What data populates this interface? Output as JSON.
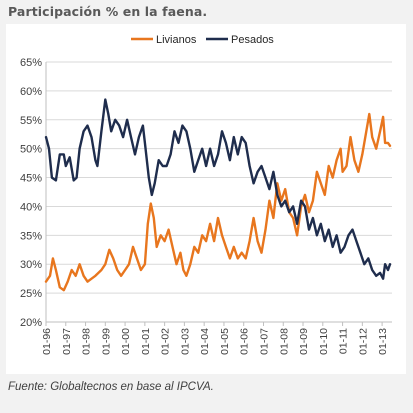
{
  "title": "Participación % en la faena.",
  "source": "Fuente: Globaltecnos en base al IPCVA.",
  "chart_data": {
    "type": "line",
    "title": "Participación % en la faena.",
    "xlabel": "",
    "ylabel": "",
    "ylim": [
      20,
      65
    ],
    "y_ticks": [
      "20%",
      "25%",
      "30%",
      "35%",
      "40%",
      "45%",
      "50%",
      "55%",
      "60%",
      "65%"
    ],
    "x_ticks": [
      "01-96",
      "01-97",
      "01-98",
      "01-99",
      "01-00",
      "01-01",
      "01-02",
      "01-03",
      "01-04",
      "01-05",
      "01-06",
      "01-07",
      "01-08",
      "01-09",
      "01-10",
      "01-11",
      "01-12",
      "01-13"
    ],
    "x_start": "1996-01",
    "x_end": "2013-06",
    "grid": "horizontal",
    "legend_position": "top",
    "series": [
      {
        "name": "Livianos",
        "color": "#e8761e",
        "points": [
          [
            1996.0,
            27
          ],
          [
            1996.2,
            28
          ],
          [
            1996.35,
            31
          ],
          [
            1996.5,
            29
          ],
          [
            1996.7,
            26
          ],
          [
            1996.9,
            25.5
          ],
          [
            1997.1,
            27
          ],
          [
            1997.3,
            29
          ],
          [
            1997.5,
            28
          ],
          [
            1997.7,
            30
          ],
          [
            1997.9,
            28
          ],
          [
            1998.1,
            27
          ],
          [
            1998.3,
            27.5
          ],
          [
            1998.5,
            28
          ],
          [
            1998.8,
            29
          ],
          [
            1999.0,
            30
          ],
          [
            1999.2,
            32.5
          ],
          [
            1999.4,
            31
          ],
          [
            1999.6,
            29
          ],
          [
            1999.8,
            28
          ],
          [
            2000.0,
            29
          ],
          [
            2000.2,
            30
          ],
          [
            2000.4,
            33
          ],
          [
            2000.6,
            31
          ],
          [
            2000.8,
            29
          ],
          [
            2001.0,
            30
          ],
          [
            2001.15,
            37
          ],
          [
            2001.3,
            40.5
          ],
          [
            2001.45,
            38
          ],
          [
            2001.6,
            33
          ],
          [
            2001.8,
            35
          ],
          [
            2002.0,
            34
          ],
          [
            2002.2,
            36
          ],
          [
            2002.4,
            33
          ],
          [
            2002.6,
            30
          ],
          [
            2002.8,
            32
          ],
          [
            2002.95,
            29
          ],
          [
            2003.1,
            28
          ],
          [
            2003.3,
            30
          ],
          [
            2003.5,
            33
          ],
          [
            2003.7,
            32
          ],
          [
            2003.9,
            35
          ],
          [
            2004.1,
            34
          ],
          [
            2004.3,
            37
          ],
          [
            2004.5,
            34
          ],
          [
            2004.7,
            38
          ],
          [
            2004.9,
            35
          ],
          [
            2005.1,
            33
          ],
          [
            2005.3,
            31
          ],
          [
            2005.5,
            33
          ],
          [
            2005.7,
            31
          ],
          [
            2005.9,
            32
          ],
          [
            2006.1,
            31
          ],
          [
            2006.3,
            34
          ],
          [
            2006.5,
            38
          ],
          [
            2006.7,
            34
          ],
          [
            2006.9,
            32
          ],
          [
            2007.1,
            36
          ],
          [
            2007.3,
            41
          ],
          [
            2007.5,
            38
          ],
          [
            2007.7,
            44
          ],
          [
            2007.9,
            41
          ],
          [
            2008.1,
            43
          ],
          [
            2008.3,
            39
          ],
          [
            2008.5,
            38
          ],
          [
            2008.7,
            35
          ],
          [
            2008.9,
            40
          ],
          [
            2009.1,
            42
          ],
          [
            2009.3,
            39
          ],
          [
            2009.5,
            41
          ],
          [
            2009.7,
            46
          ],
          [
            2009.9,
            44
          ],
          [
            2010.1,
            42
          ],
          [
            2010.3,
            47
          ],
          [
            2010.5,
            45
          ],
          [
            2010.7,
            48
          ],
          [
            2010.9,
            50
          ],
          [
            2011.0,
            46
          ],
          [
            2011.2,
            47
          ],
          [
            2011.4,
            52
          ],
          [
            2011.6,
            48
          ],
          [
            2011.8,
            46
          ],
          [
            2012.0,
            49
          ],
          [
            2012.2,
            53
          ],
          [
            2012.35,
            56
          ],
          [
            2012.5,
            52
          ],
          [
            2012.7,
            50
          ],
          [
            2012.9,
            53
          ],
          [
            2013.05,
            55.5
          ],
          [
            2013.15,
            51
          ],
          [
            2013.3,
            51
          ],
          [
            2013.4,
            50.5
          ]
        ]
      },
      {
        "name": "Pesados",
        "color": "#1f2d4d",
        "points": [
          [
            1996.0,
            52
          ],
          [
            1996.15,
            50
          ],
          [
            1996.3,
            45
          ],
          [
            1996.5,
            44.5
          ],
          [
            1996.7,
            49
          ],
          [
            1996.9,
            49
          ],
          [
            1997.0,
            47
          ],
          [
            1997.2,
            48.5
          ],
          [
            1997.4,
            44.5
          ],
          [
            1997.55,
            45
          ],
          [
            1997.7,
            50
          ],
          [
            1997.9,
            53
          ],
          [
            1998.1,
            54
          ],
          [
            1998.3,
            52
          ],
          [
            1998.5,
            48
          ],
          [
            1998.6,
            47
          ],
          [
            1998.8,
            53
          ],
          [
            1999.0,
            58.5
          ],
          [
            1999.15,
            56
          ],
          [
            1999.3,
            53
          ],
          [
            1999.5,
            55
          ],
          [
            1999.7,
            54
          ],
          [
            1999.9,
            52
          ],
          [
            2000.1,
            55
          ],
          [
            2000.3,
            52
          ],
          [
            2000.5,
            49
          ],
          [
            2000.7,
            52
          ],
          [
            2000.9,
            54
          ],
          [
            2001.0,
            51
          ],
          [
            2001.2,
            45
          ],
          [
            2001.35,
            42
          ],
          [
            2001.5,
            44
          ],
          [
            2001.7,
            48
          ],
          [
            2001.9,
            47
          ],
          [
            2002.1,
            47
          ],
          [
            2002.3,
            49
          ],
          [
            2002.5,
            53
          ],
          [
            2002.7,
            51
          ],
          [
            2002.9,
            54
          ],
          [
            2003.1,
            53
          ],
          [
            2003.3,
            50
          ],
          [
            2003.5,
            46
          ],
          [
            2003.7,
            48
          ],
          [
            2003.9,
            50
          ],
          [
            2004.1,
            47
          ],
          [
            2004.3,
            50
          ],
          [
            2004.5,
            47
          ],
          [
            2004.7,
            49
          ],
          [
            2004.9,
            53
          ],
          [
            2005.1,
            51
          ],
          [
            2005.3,
            48
          ],
          [
            2005.5,
            52
          ],
          [
            2005.7,
            49
          ],
          [
            2005.9,
            52
          ],
          [
            2006.1,
            51
          ],
          [
            2006.3,
            47
          ],
          [
            2006.5,
            44
          ],
          [
            2006.7,
            46
          ],
          [
            2006.9,
            47
          ],
          [
            2007.1,
            45
          ],
          [
            2007.3,
            43
          ],
          [
            2007.5,
            46
          ],
          [
            2007.7,
            42
          ],
          [
            2007.9,
            40
          ],
          [
            2008.1,
            41
          ],
          [
            2008.3,
            39
          ],
          [
            2008.5,
            40
          ],
          [
            2008.7,
            37
          ],
          [
            2008.9,
            41
          ],
          [
            2009.1,
            40
          ],
          [
            2009.3,
            36
          ],
          [
            2009.5,
            38
          ],
          [
            2009.7,
            35
          ],
          [
            2009.9,
            37
          ],
          [
            2010.1,
            34
          ],
          [
            2010.3,
            36
          ],
          [
            2010.5,
            33
          ],
          [
            2010.7,
            35
          ],
          [
            2010.9,
            32
          ],
          [
            2011.1,
            33
          ],
          [
            2011.3,
            35
          ],
          [
            2011.5,
            36
          ],
          [
            2011.7,
            34
          ],
          [
            2011.9,
            32
          ],
          [
            2012.1,
            30
          ],
          [
            2012.3,
            31
          ],
          [
            2012.5,
            29
          ],
          [
            2012.7,
            28
          ],
          [
            2012.9,
            28.5
          ],
          [
            2013.05,
            27.5
          ],
          [
            2013.15,
            30
          ],
          [
            2013.3,
            29
          ],
          [
            2013.4,
            30
          ]
        ]
      }
    ]
  }
}
